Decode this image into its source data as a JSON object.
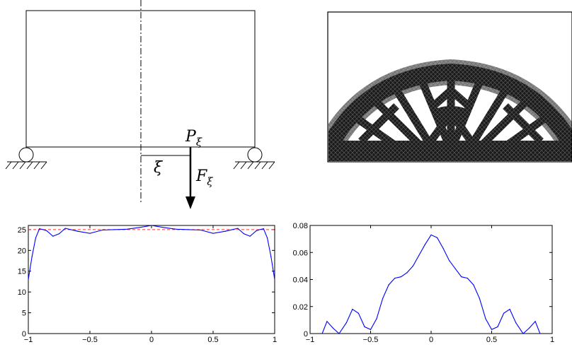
{
  "schematic": {
    "point_label": "P",
    "point_sub": "ξ",
    "offset_label": "ξ",
    "force_label": "F",
    "force_sub": "ξ"
  },
  "chart_data": [
    {
      "type": "line",
      "xlim": [
        -1,
        1
      ],
      "ylim": [
        0,
        26
      ],
      "xticks": [
        -1,
        -0.5,
        0,
        0.5,
        1
      ],
      "xtick_labels": [
        "−1",
        "−0.5",
        "0",
        "0.5",
        "1"
      ],
      "yticks": [
        0,
        5,
        10,
        15,
        20,
        25
      ],
      "ytick_labels": [
        "0",
        "5",
        "10",
        "15",
        "20",
        "25"
      ],
      "reference_line": {
        "y": 25,
        "color": "#ff3030",
        "style": "dashed"
      },
      "series": [
        {
          "color": "#0000ff",
          "x": [
            -1,
            -0.97,
            -0.94,
            -0.91,
            -0.88,
            -0.85,
            -0.8,
            -0.75,
            -0.7,
            -0.6,
            -0.5,
            -0.4,
            -0.3,
            -0.2,
            -0.1,
            0,
            0.1,
            0.2,
            0.3,
            0.4,
            0.5,
            0.6,
            0.7,
            0.75,
            0.8,
            0.85,
            0.88,
            0.91,
            0.94,
            0.97,
            1
          ],
          "y": [
            13,
            18.5,
            23,
            25.2,
            25,
            24.7,
            23.4,
            24,
            25.3,
            24.6,
            24.1,
            24.9,
            25,
            25.1,
            25.5,
            26,
            25.5,
            25.1,
            25,
            24.9,
            24.1,
            24.6,
            25.3,
            24,
            23.4,
            24.7,
            25,
            25.2,
            23,
            18.5,
            13
          ]
        }
      ]
    },
    {
      "type": "line",
      "xlim": [
        -1,
        1
      ],
      "ylim": [
        0,
        0.08
      ],
      "xticks": [
        -1,
        -0.5,
        0,
        0.5,
        1
      ],
      "xtick_labels": [
        "−1",
        "−0.5",
        "0",
        "0.5",
        "1"
      ],
      "yticks": [
        0,
        0.02,
        0.04,
        0.06,
        0.08
      ],
      "ytick_labels": [
        "0",
        "0.02",
        "0.04",
        "0.06",
        "0.08"
      ],
      "series": [
        {
          "color": "#0000ff",
          "x": [
            -0.9,
            -0.86,
            -0.81,
            -0.76,
            -0.7,
            -0.65,
            -0.6,
            -0.55,
            -0.5,
            -0.45,
            -0.4,
            -0.35,
            -0.3,
            -0.25,
            -0.2,
            -0.15,
            -0.1,
            -0.05,
            0,
            0.05,
            0.1,
            0.15,
            0.2,
            0.25,
            0.3,
            0.35,
            0.4,
            0.45,
            0.5,
            0.55,
            0.6,
            0.65,
            0.7,
            0.76,
            0.81,
            0.86,
            0.9
          ],
          "y": [
            0,
            0.009,
            0.004,
            0,
            0.008,
            0.018,
            0.015,
            0.005,
            0.003,
            0.011,
            0.026,
            0.036,
            0.041,
            0.042,
            0.045,
            0.05,
            0.058,
            0.066,
            0.073,
            0.071,
            0.063,
            0.054,
            0.048,
            0.042,
            0.041,
            0.036,
            0.026,
            0.011,
            0.003,
            0.005,
            0.015,
            0.018,
            0.008,
            0,
            0.004,
            0.009,
            0
          ]
        }
      ]
    }
  ]
}
